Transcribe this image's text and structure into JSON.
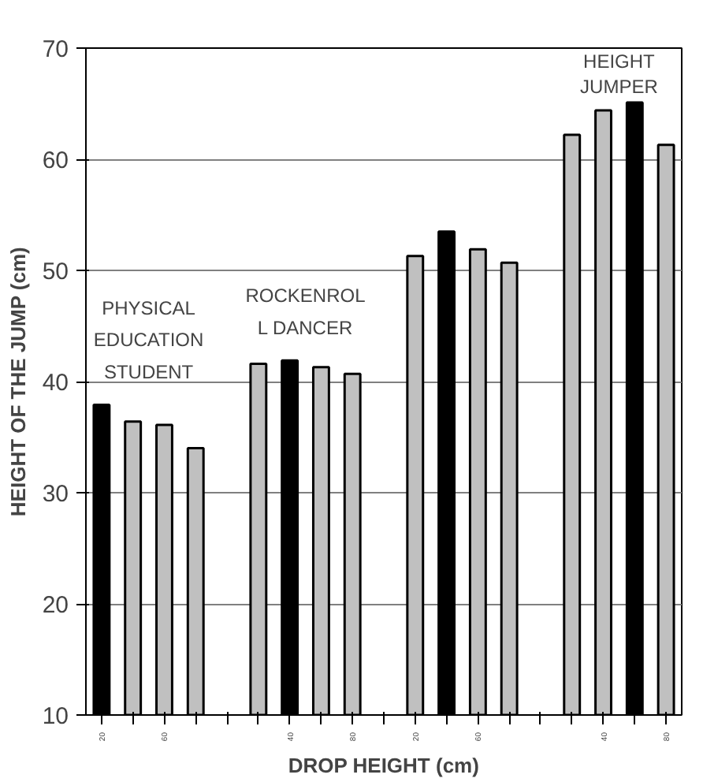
{
  "chart_data": {
    "type": "bar",
    "xlabel": "DROP HEIGHT (cm)",
    "ylabel": "HEIGHT OF THE JUMP (cm)",
    "categories": [
      "20",
      null,
      "60",
      null,
      null,
      null,
      "40",
      null,
      "80",
      null,
      "20",
      null,
      "60",
      null,
      null,
      null,
      "40",
      null,
      "80"
    ],
    "values": [
      37.9,
      36.4,
      36.1,
      34.0,
      null,
      41.6,
      41.9,
      41.3,
      40.7,
      null,
      51.3,
      53.5,
      51.9,
      50.7,
      null,
      62.2,
      64.4,
      65.1,
      61.3
    ],
    "colors": [
      "#000000",
      "#c0c0c0",
      "#c0c0c0",
      "#c0c0c0",
      "#c0c0c0",
      "#c0c0c0",
      "#000000",
      "#c0c0c0",
      "#c0c0c0",
      "#c0c0c0",
      "#c0c0c0",
      "#000000",
      "#c0c0c0",
      "#c0c0c0",
      "#c0c0c0",
      "#c0c0c0",
      "#c0c0c0",
      "#000000",
      "#c0c0c0"
    ],
    "ylim": [
      10,
      70
    ],
    "yticks": [
      10,
      20,
      30,
      40,
      50,
      60,
      70
    ],
    "grid": "y",
    "annotations": [
      "PHYSICAL\nEDUCATION\nSTUDENT",
      "ROCKENROL\nL DANCER",
      "HEIGHT\nJUMPER"
    ]
  }
}
